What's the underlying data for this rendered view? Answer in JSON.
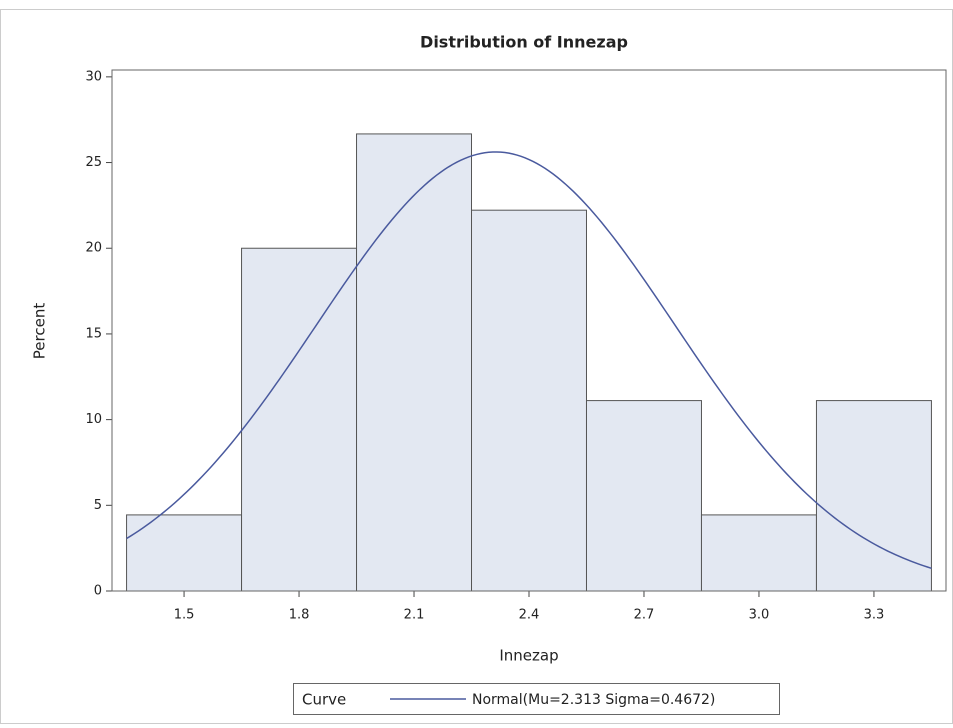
{
  "chart_data": {
    "type": "histogram",
    "title": "Distribution of Innezap",
    "x_label": "Innezap",
    "y_label": "Percent",
    "bins": [
      1.35,
      1.65,
      1.95,
      2.25,
      2.55,
      2.85,
      3.15,
      3.45
    ],
    "counts": [
      4.44,
      20,
      26.67,
      22.22,
      11.11,
      4.44,
      11.11
    ],
    "color": "#e3e8f2",
    "xlim": [
      1.312,
      3.488
    ],
    "xticks": [
      1.5,
      1.8,
      2.1,
      2.4,
      2.7,
      {
        "value": 3,
        "label": "3.0"
      },
      3.3
    ],
    "ylim": [
      0,
      30.4
    ],
    "yticks": [
      0,
      5,
      10,
      15,
      20,
      25,
      30
    ],
    "legend_title": "Curve",
    "curve": {
      "name": "Normal(Mu=2.313 Sigma=0.4672)",
      "mu": 2.313,
      "sigma": 0.4672,
      "color": "#4a5a9e"
    },
    "legend_position": "bottom"
  }
}
